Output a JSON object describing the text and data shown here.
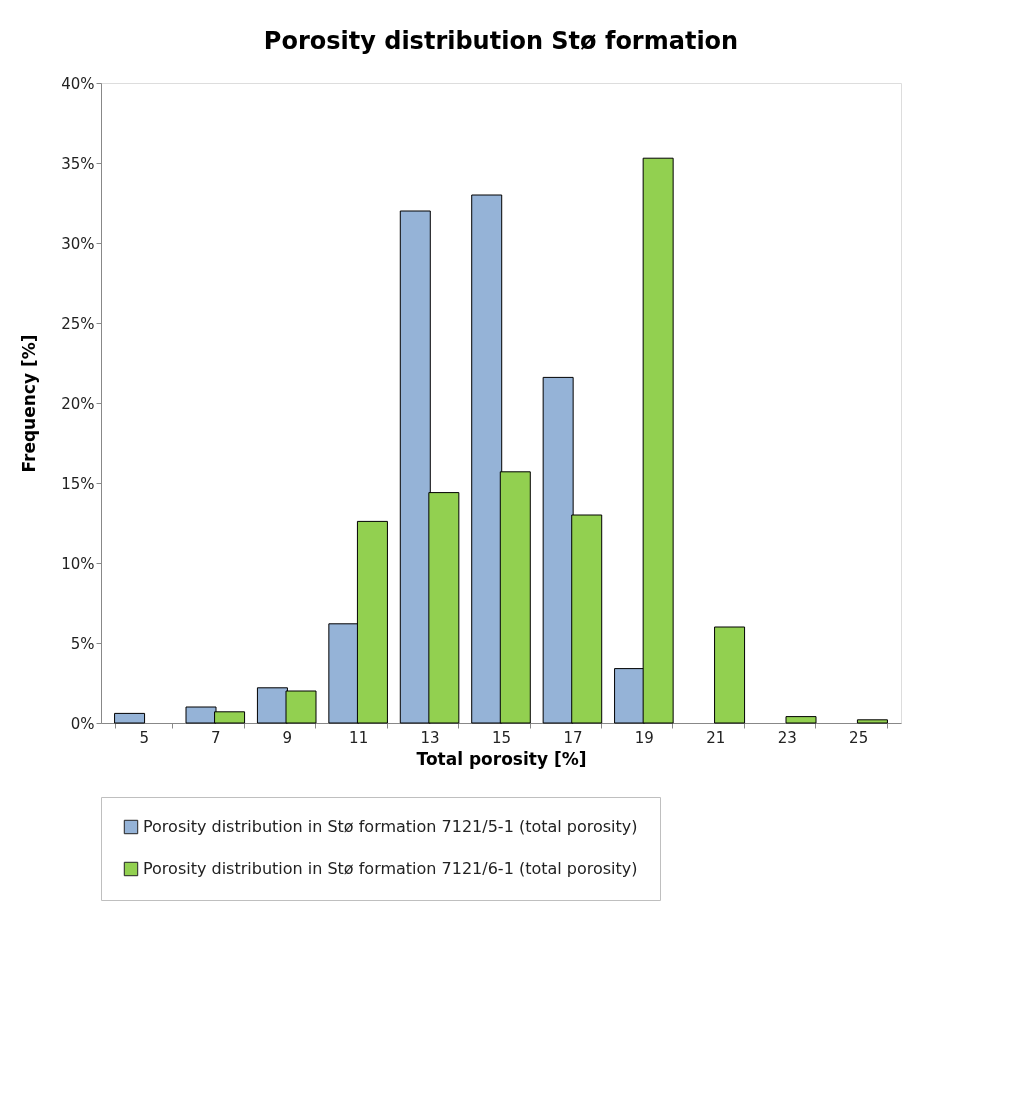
{
  "chart_data": {
    "type": "bar",
    "title": "Porosity distribution Stø formation",
    "xlabel": "Total porosity [%]",
    "ylabel": "Frequency [%]",
    "categories": [
      "5",
      "7",
      "9",
      "11",
      "13",
      "15",
      "17",
      "19",
      "21",
      "23",
      "25"
    ],
    "series": [
      {
        "name": "Porosity distribution in Stø formation 7121/5-1 (total porosity)",
        "color": "#95b3d7",
        "values": [
          0.6,
          1.0,
          2.2,
          6.2,
          32.0,
          33.0,
          21.6,
          3.4,
          0,
          0,
          0
        ]
      },
      {
        "name": "Porosity distribution in Stø formation 7121/6-1 (total porosity)",
        "color": "#92d050",
        "values": [
          0,
          0.7,
          2.0,
          12.6,
          14.4,
          15.7,
          13.0,
          35.3,
          6.0,
          0.4,
          0.2
        ]
      }
    ],
    "ylim": [
      0,
      40
    ],
    "yticks": [
      {
        "value": 0,
        "label": "0%"
      },
      {
        "value": 5,
        "label": "5%"
      },
      {
        "value": 10,
        "label": "10%"
      },
      {
        "value": 15,
        "label": "15%"
      },
      {
        "value": 20,
        "label": "20%"
      },
      {
        "value": 25,
        "label": "25%"
      },
      {
        "value": 30,
        "label": "30%"
      },
      {
        "value": 35,
        "label": "35%"
      },
      {
        "value": 40,
        "label": "40%"
      }
    ],
    "grid": false,
    "legend": "bottom"
  }
}
